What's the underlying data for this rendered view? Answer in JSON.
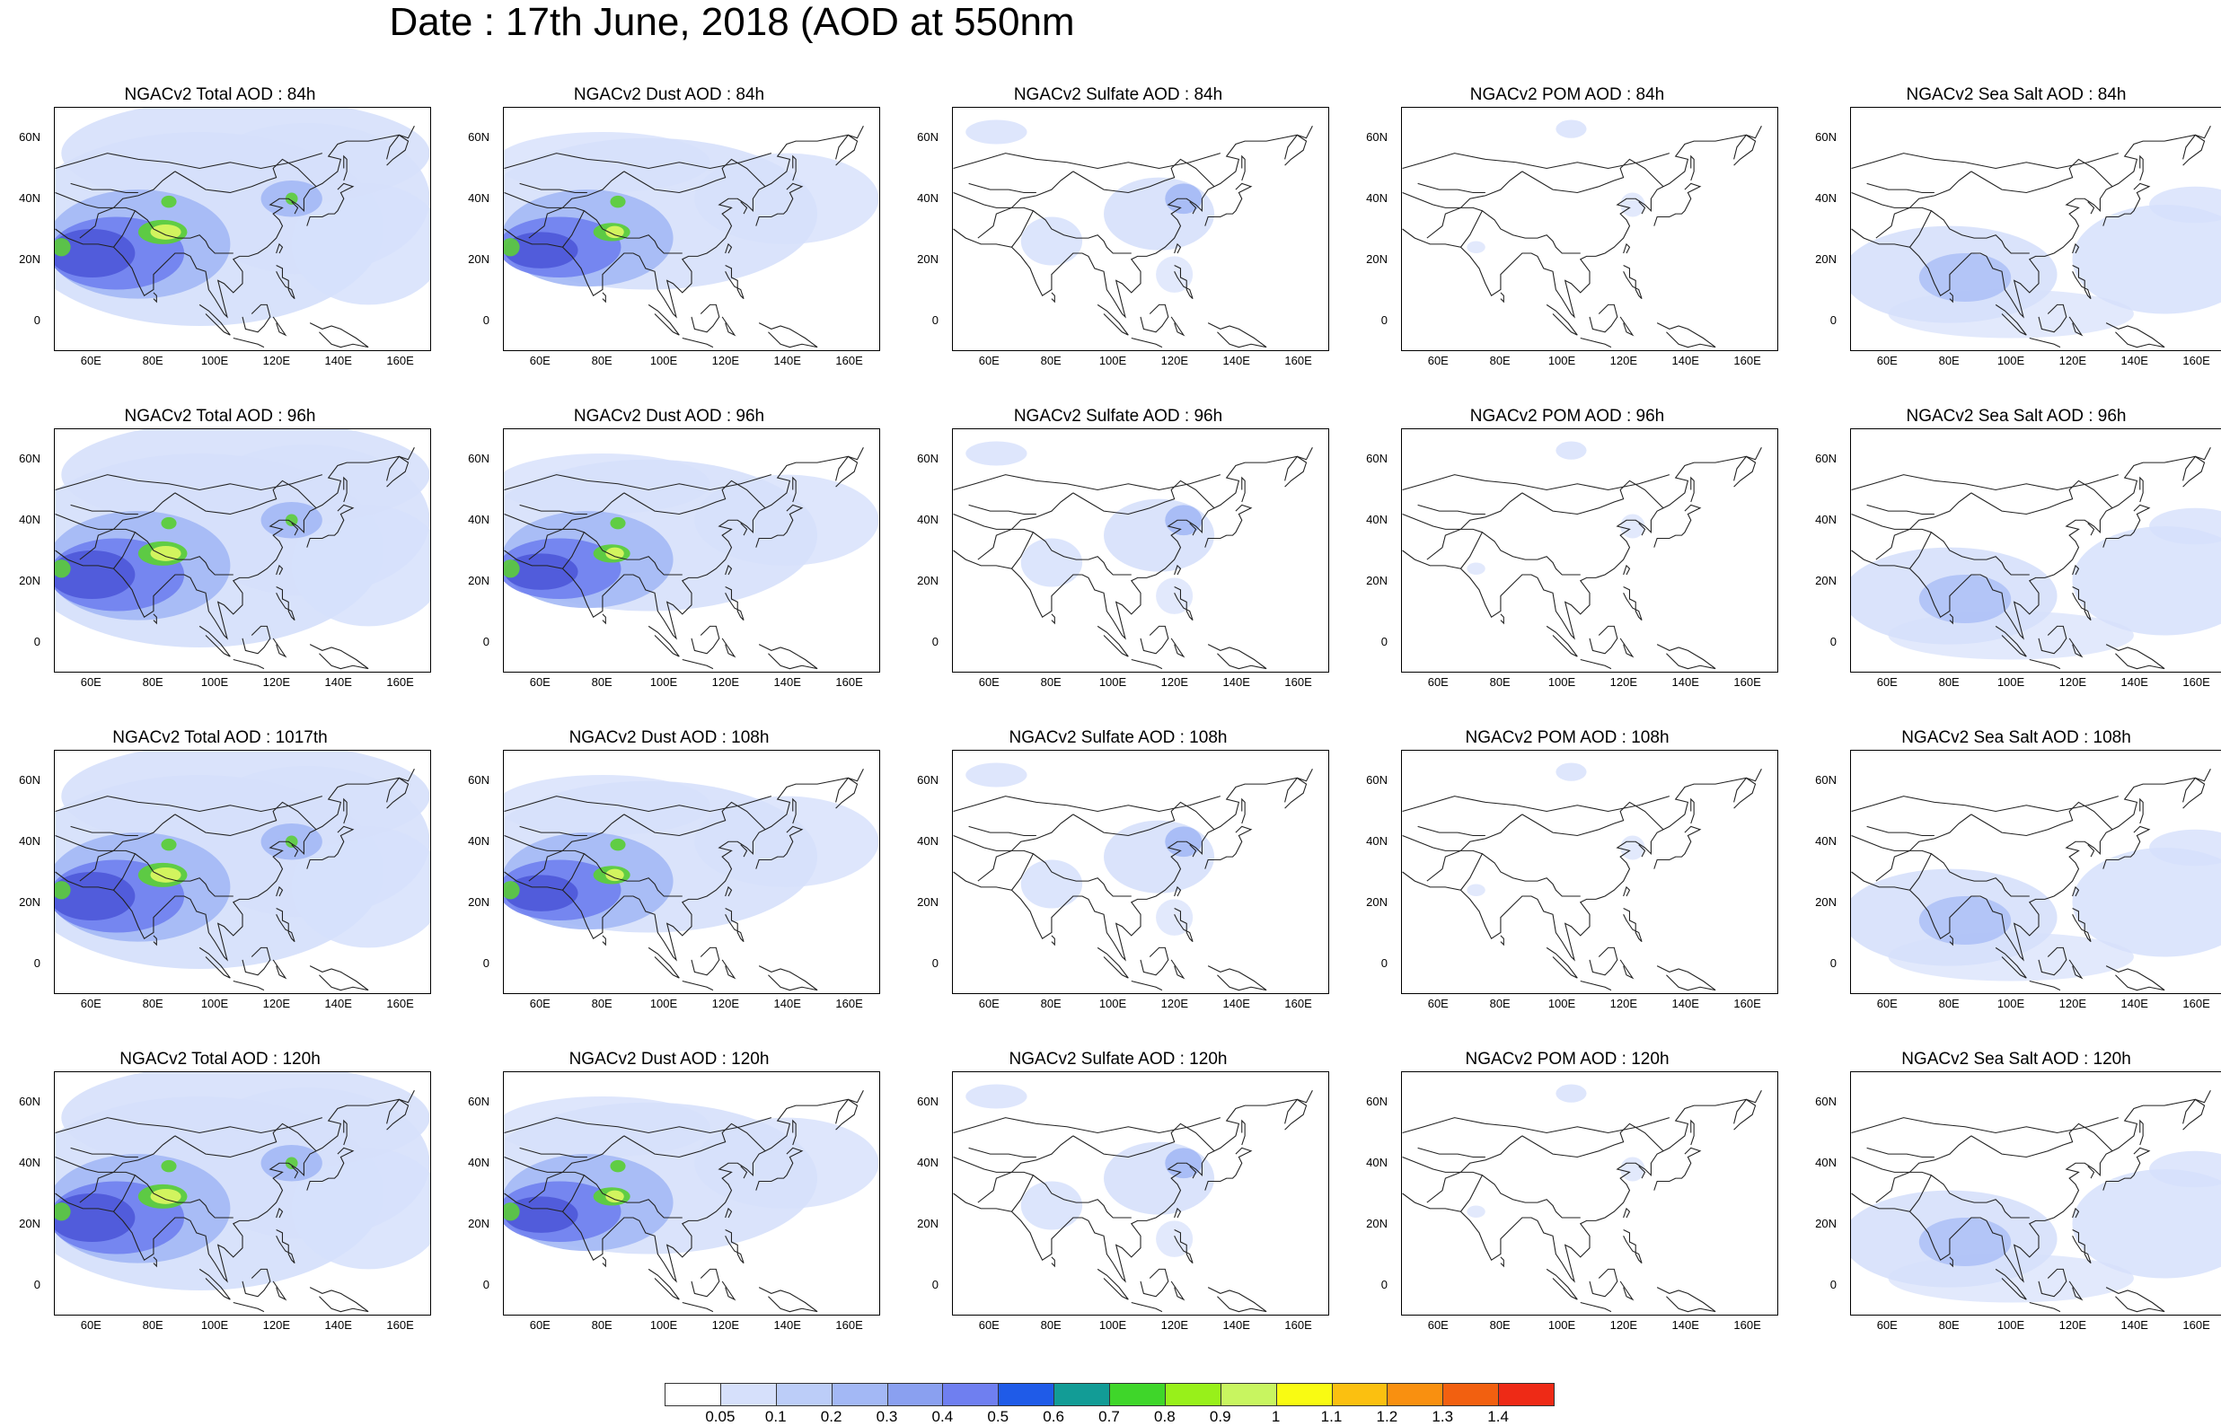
{
  "title": "Date : 17th June, 2018 (AOD at 550nm",
  "lat_ticks": [
    "60N",
    "40N",
    "20N",
    "0"
  ],
  "lon_ticks": [
    "60E",
    "80E",
    "100E",
    "120E",
    "140E",
    "160E"
  ],
  "rows": [
    [
      "NGACv2 Total AOD : 84h",
      "NGACv2 Dust AOD : 84h",
      "NGACv2 Sulfate AOD : 84h",
      "NGACv2 POM AOD : 84h",
      "NGACv2 Sea Salt AOD : 84h"
    ],
    [
      "NGACv2 Total AOD : 96h",
      "NGACv2 Dust AOD : 96h",
      "NGACv2 Sulfate AOD : 96h",
      "NGACv2 POM AOD : 96h",
      "NGACv2 Sea Salt AOD : 96h"
    ],
    [
      "NGACv2 Total AOD : 1017th",
      "NGACv2 Dust AOD : 108h",
      "NGACv2 Sulfate AOD : 108h",
      "NGACv2 POM AOD : 108h",
      "NGACv2 Sea Salt AOD : 108h"
    ],
    [
      "NGACv2 Total AOD : 120h",
      "NGACv2 Dust AOD : 120h",
      "NGACv2 Sulfate AOD : 120h",
      "NGACv2 POM AOD : 120h",
      "NGACv2 Sea Salt  AOD : 120h"
    ]
  ],
  "colorbar": {
    "labels": [
      "0.05",
      "0.1",
      "0.2",
      "0.3",
      "0.4",
      "0.5",
      "0.6",
      "0.7",
      "0.8",
      "0.9",
      "1",
      "1.1",
      "1.2",
      "1.3",
      "1.4"
    ],
    "colors": [
      "#ffffff",
      "#d6e0fb",
      "#bccdf8",
      "#a3b8f5",
      "#8aa0f0",
      "#6f7ff0",
      "#1f5be8",
      "#129c96",
      "#3fd62a",
      "#98f01a",
      "#c8f560",
      "#f9fb12",
      "#fbc010",
      "#f99010",
      "#f26010",
      "#ee2a16"
    ]
  },
  "colors": {
    "light": "#d6e0fb",
    "mid": "#a3b8f5",
    "deep": "#6f7ff0",
    "dark": "#4e58d8",
    "green": "#5ccd3a",
    "yellow": "#d8f560",
    "coast": "#222222"
  }
}
